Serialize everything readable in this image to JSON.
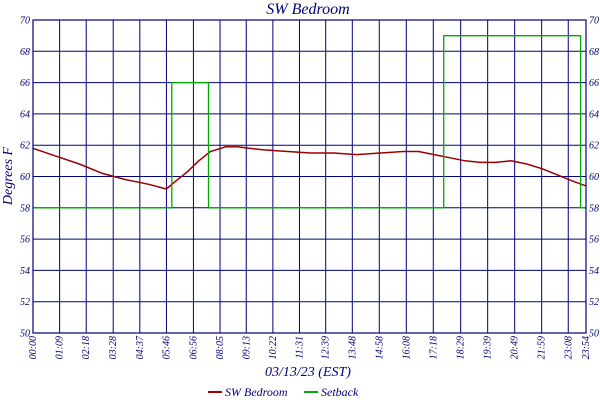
{
  "chart_data": {
    "type": "line",
    "title": "SW Bedroom",
    "xlabel": "03/13/23 (EST)",
    "ylabel": "Degrees F",
    "ylim": [
      50,
      70
    ],
    "yticks": [
      50,
      52,
      54,
      56,
      58,
      60,
      62,
      64,
      66,
      68,
      70
    ],
    "xlim_minutes": [
      0,
      1434
    ],
    "xtick_labels": [
      "00:00",
      "01:09",
      "02:18",
      "03:28",
      "04:37",
      "05:46",
      "06:56",
      "08:05",
      "09:13",
      "10:22",
      "11:31",
      "12:39",
      "13:48",
      "14:58",
      "16:08",
      "17:18",
      "18:29",
      "19:39",
      "20:49",
      "21:59",
      "23:08",
      "23:54"
    ],
    "xtick_minutes": [
      0,
      69,
      138,
      208,
      277,
      346,
      416,
      485,
      553,
      622,
      691,
      759,
      828,
      898,
      968,
      1038,
      1109,
      1179,
      1249,
      1319,
      1388,
      1434
    ],
    "grid": true,
    "legend_position": "bottom-center",
    "colors": {
      "axis": "#00007a",
      "grid": "#00007a",
      "sw_bedroom": "#990000",
      "setback": "#00aa00"
    },
    "series": [
      {
        "name": "SW Bedroom",
        "x_minutes": [
          0,
          60,
          120,
          180,
          240,
          300,
          346,
          370,
          400,
          430,
          460,
          500,
          530,
          560,
          600,
          660,
          720,
          780,
          840,
          900,
          960,
          1000,
          1040,
          1080,
          1120,
          1160,
          1200,
          1240,
          1280,
          1320,
          1360,
          1400,
          1434
        ],
        "values": [
          61.8,
          61.3,
          60.8,
          60.2,
          59.8,
          59.5,
          59.2,
          59.7,
          60.3,
          61.0,
          61.6,
          61.9,
          61.9,
          61.8,
          61.7,
          61.6,
          61.5,
          61.5,
          61.4,
          61.5,
          61.6,
          61.6,
          61.4,
          61.2,
          61.0,
          60.9,
          60.9,
          61.0,
          60.8,
          60.5,
          60.1,
          59.7,
          59.4
        ]
      },
      {
        "name": "Setback",
        "x_minutes": [
          0,
          360,
          360,
          455,
          455,
          1065,
          1065,
          1420,
          1420,
          1434
        ],
        "values": [
          58,
          58,
          66,
          66,
          58,
          58,
          69,
          69,
          58,
          58
        ]
      }
    ]
  }
}
